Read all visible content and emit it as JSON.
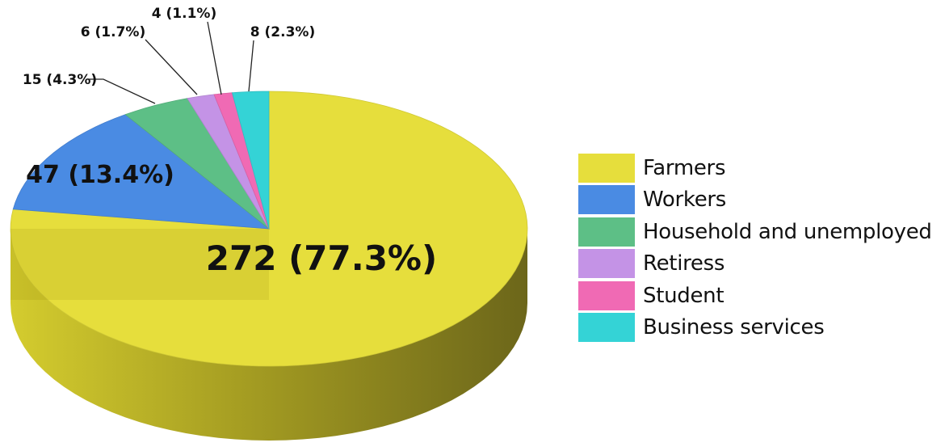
{
  "chart_data": {
    "type": "pie",
    "style": "3d",
    "title": "",
    "slices": [
      {
        "name": "Farmers",
        "value": 272,
        "percent": 77.3,
        "label": "272 (77.3%)",
        "color": "#e6de3c"
      },
      {
        "name": "Workers",
        "value": 47,
        "percent": 13.4,
        "label": "47 (13.4%)",
        "color": "#4a8be3"
      },
      {
        "name": "Household and unemployed",
        "value": 15,
        "percent": 4.3,
        "label": "15 (4.3%)",
        "color": "#5dbf86"
      },
      {
        "name": "Retiress",
        "value": 6,
        "percent": 1.7,
        "label": "6 (1.7%)",
        "color": "#c493e6"
      },
      {
        "name": "Student",
        "value": 4,
        "percent": 1.1,
        "label": "4 (1.1%)",
        "color": "#f06ab4"
      },
      {
        "name": "Business services",
        "value": 8,
        "percent": 2.3,
        "label": "8 (2.3%)",
        "color": "#34d3d6"
      }
    ],
    "legend_position": "right"
  }
}
